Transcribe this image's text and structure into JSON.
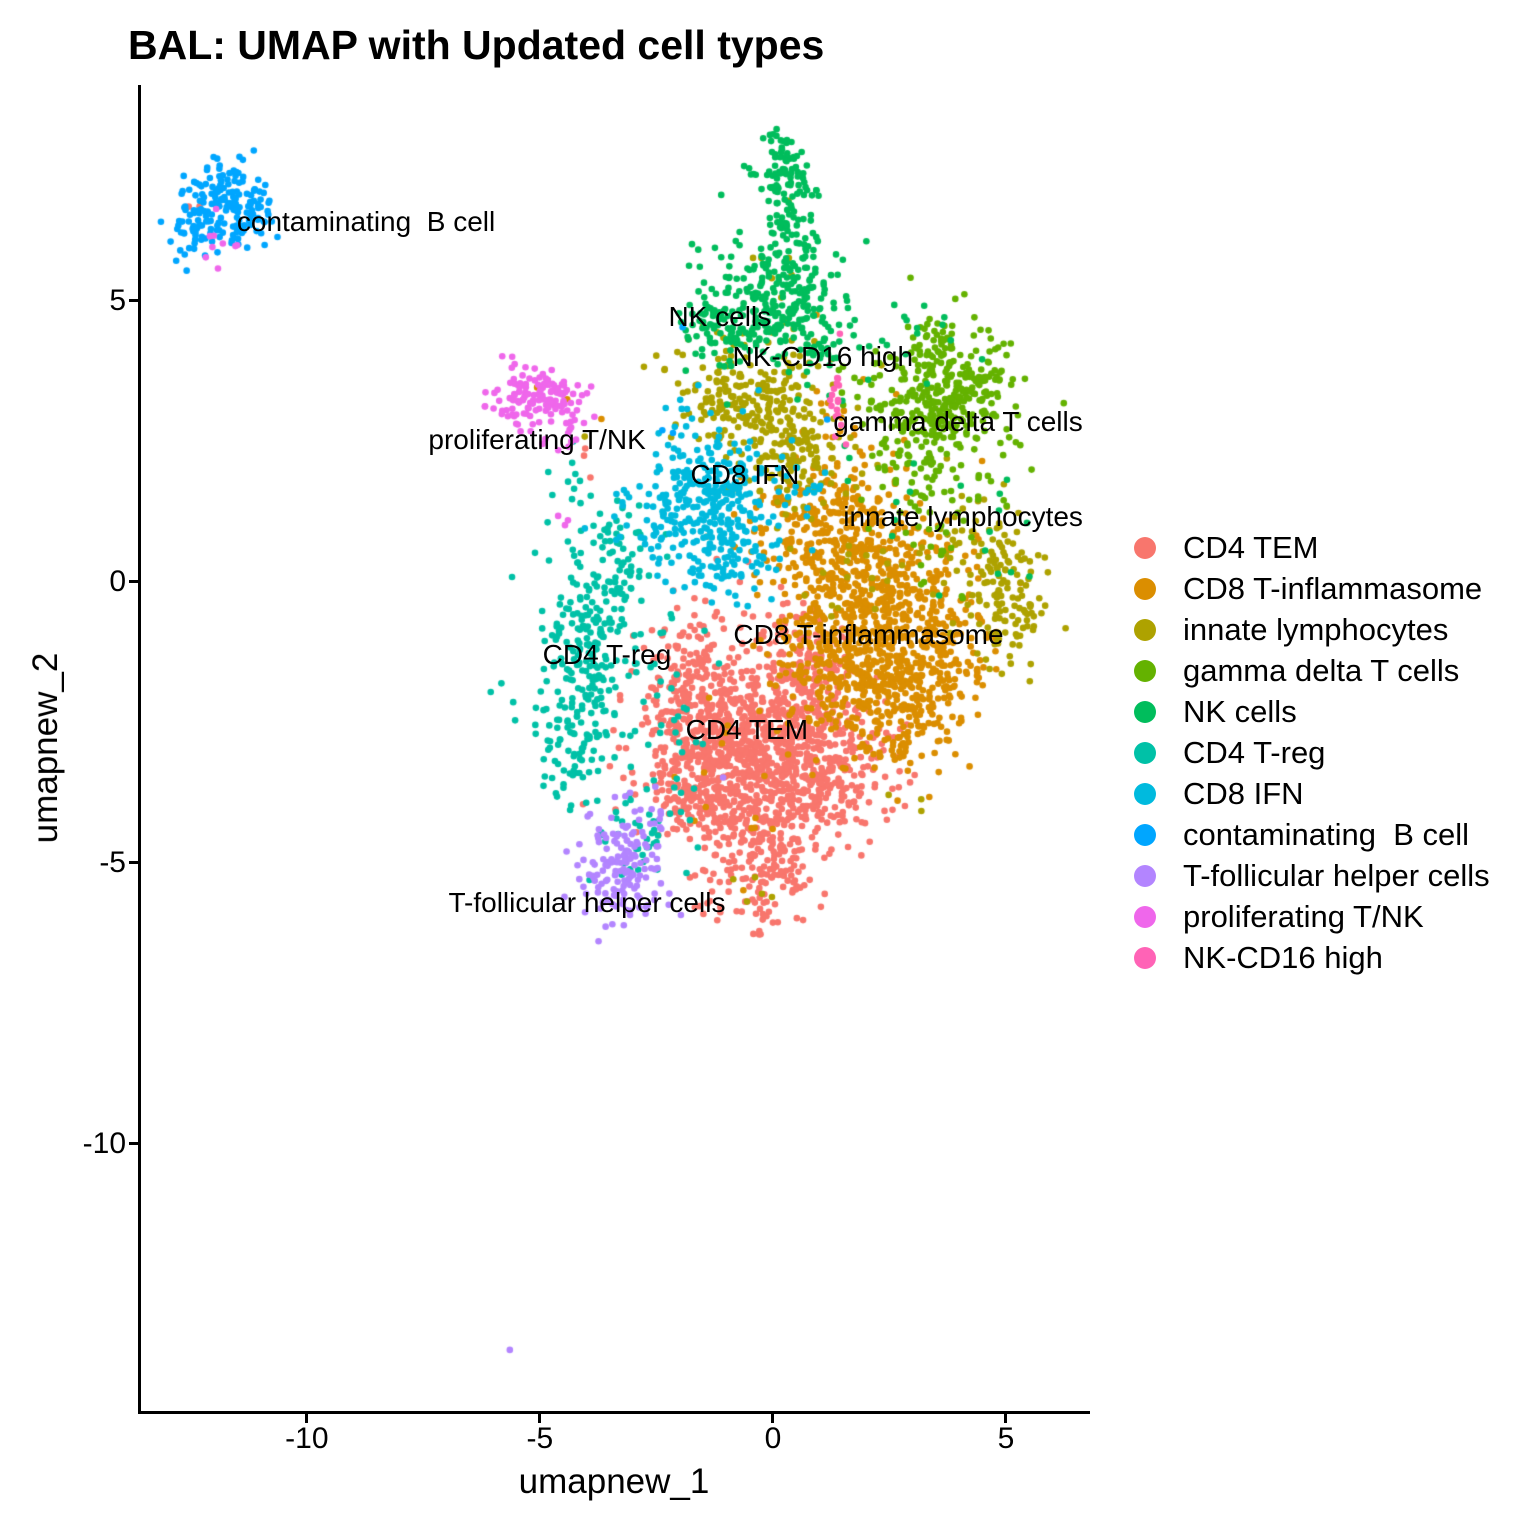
{
  "title": "BAL: UMAP with Updated cell types",
  "axes": {
    "x_label": "umapnew_1",
    "y_label": "umapnew_2",
    "x_ticks": [
      -10,
      -5,
      0,
      5
    ],
    "y_ticks": [
      5,
      0,
      -5,
      -10
    ]
  },
  "legend": {
    "items": [
      {
        "label": "CD4 TEM",
        "color": "#F8766D"
      },
      {
        "label": "CD8 T-inflammasome",
        "color": "#DB8E00"
      },
      {
        "label": "innate lymphocytes",
        "color": "#AEA200"
      },
      {
        "label": "gamma delta T cells",
        "color": "#64B200"
      },
      {
        "label": "NK cells",
        "color": "#00BD5C"
      },
      {
        "label": "CD4 T-reg",
        "color": "#00C1A7"
      },
      {
        "label": "CD8 IFN",
        "color": "#00BADE"
      },
      {
        "label": "contaminating  B cell",
        "color": "#00A6FF"
      },
      {
        "label": "T-follicular helper cells",
        "color": "#B385FF"
      },
      {
        "label": "proliferating T/NK",
        "color": "#EF67EB"
      },
      {
        "label": "NK-CD16 high",
        "color": "#FF63B6"
      }
    ]
  },
  "chart_data": {
    "type": "scatter",
    "title": "BAL: UMAP with Updated cell types",
    "xlabel": "umapnew_1",
    "ylabel": "umapnew_2",
    "xlim": [
      -13.58,
      6.76
    ],
    "ylim": [
      -14.77,
      8.84
    ],
    "grid": false,
    "legend_position": "right",
    "point_radius": 3.3,
    "seed": 7,
    "clusters": [
      {
        "name": "CD4 TEM",
        "color": "#F8766D",
        "label": {
          "text": "CD4 TEM",
          "x": -0.56,
          "y": -2.63
        },
        "blobs": [
          {
            "x": -0.3,
            "y": -2.7,
            "sx": 1.05,
            "sy": 0.95,
            "n": 650
          },
          {
            "x": -1.2,
            "y": -3.6,
            "sx": 0.7,
            "sy": 0.75,
            "n": 300
          },
          {
            "x": 0.9,
            "y": -3.2,
            "sx": 0.75,
            "sy": 0.8,
            "n": 300
          },
          {
            "x": -1.5,
            "y": -1.7,
            "sx": 0.6,
            "sy": 0.55,
            "n": 130
          },
          {
            "x": -0.1,
            "y": -5.0,
            "sx": 0.5,
            "sy": 0.55,
            "n": 120
          },
          {
            "x": 0.8,
            "y": -1.3,
            "sx": 0.5,
            "sy": 0.5,
            "n": 60
          },
          {
            "x": -2.2,
            "y": -2.8,
            "sx": 0.45,
            "sy": 0.9,
            "n": 40
          },
          {
            "x": -4.15,
            "y": 2.0,
            "sx": 0.15,
            "sy": 0.35,
            "n": 3
          },
          {
            "x": -12.0,
            "y": 6.5,
            "sx": 0.45,
            "sy": 0.25,
            "n": 2
          }
        ]
      },
      {
        "name": "CD8 T-inflammasome",
        "color": "#DB8E00",
        "label": {
          "text": "CD8 T-inflammasome",
          "x": 2.05,
          "y": -0.95
        },
        "blobs": [
          {
            "x": 2.3,
            "y": -0.4,
            "sx": 0.85,
            "sy": 0.95,
            "n": 450
          },
          {
            "x": 2.7,
            "y": -1.9,
            "sx": 0.75,
            "sy": 0.75,
            "n": 300
          },
          {
            "x": 1.4,
            "y": 0.8,
            "sx": 0.75,
            "sy": 0.7,
            "n": 220
          },
          {
            "x": 1.1,
            "y": -1.4,
            "sx": 0.6,
            "sy": 0.6,
            "n": 130
          },
          {
            "x": 3.9,
            "y": -0.9,
            "sx": 0.5,
            "sy": 0.6,
            "n": 80
          },
          {
            "x": 0.0,
            "y": 0.9,
            "sx": 0.7,
            "sy": 0.5,
            "n": 40
          },
          {
            "x": 1.3,
            "y": 2.4,
            "sx": 0.5,
            "sy": 0.7,
            "n": 30
          },
          {
            "x": -0.6,
            "y": -3.6,
            "sx": 0.8,
            "sy": 0.8,
            "n": 15
          },
          {
            "x": -5.0,
            "y": 3.3,
            "sx": 0.35,
            "sy": 0.2,
            "n": 2
          },
          {
            "x": -3.6,
            "y": 2.9,
            "sx": 0.05,
            "sy": 0.05,
            "n": 1
          }
        ]
      },
      {
        "name": "innate lymphocytes",
        "color": "#AEA200",
        "label": {
          "text": "innate lymphocytes",
          "x": 4.08,
          "y": 1.16
        },
        "blobs": [
          {
            "x": -0.35,
            "y": 3.1,
            "sx": 0.8,
            "sy": 0.6,
            "n": 200
          },
          {
            "x": 0.45,
            "y": 2.1,
            "sx": 0.6,
            "sy": 0.55,
            "n": 90
          },
          {
            "x": -1.3,
            "y": 3.7,
            "sx": 0.45,
            "sy": 0.4,
            "n": 30
          },
          {
            "x": 5.1,
            "y": -0.3,
            "sx": 0.45,
            "sy": 0.6,
            "n": 110
          },
          {
            "x": 4.4,
            "y": 0.5,
            "sx": 0.55,
            "sy": 0.55,
            "n": 50
          },
          {
            "x": 0.2,
            "y": 5.6,
            "sx": 0.3,
            "sy": 0.6,
            "n": 8
          },
          {
            "x": 1.8,
            "y": 0.5,
            "sx": 0.6,
            "sy": 0.8,
            "n": 20
          },
          {
            "x": -0.4,
            "y": -5.4,
            "sx": 0.5,
            "sy": 0.3,
            "n": 5
          },
          {
            "x": 2.8,
            "y": -3.6,
            "sx": 0.4,
            "sy": 0.4,
            "n": 3
          }
        ]
      },
      {
        "name": "gamma delta T cells",
        "color": "#64B200",
        "label": {
          "text": "gamma delta T cells",
          "x": 3.97,
          "y": 2.85
        },
        "blobs": [
          {
            "x": 3.75,
            "y": 3.5,
            "sx": 0.7,
            "sy": 0.55,
            "n": 300
          },
          {
            "x": 3.2,
            "y": 2.5,
            "sx": 0.5,
            "sy": 0.5,
            "n": 70
          },
          {
            "x": 3.6,
            "y": 1.3,
            "sx": 0.5,
            "sy": 0.8,
            "n": 45
          },
          {
            "x": 2.3,
            "y": 3.3,
            "sx": 0.5,
            "sy": 0.4,
            "n": 20
          },
          {
            "x": 4.8,
            "y": 2.2,
            "sx": 0.4,
            "sy": 0.5,
            "n": 15
          }
        ]
      },
      {
        "name": "NK cells",
        "color": "#00BD5C",
        "label": {
          "text": "NK cells",
          "x": -1.14,
          "y": 4.72
        },
        "blobs": [
          {
            "x": 0.28,
            "y": 7.3,
            "sx": 0.3,
            "sy": 0.35,
            "n": 90
          },
          {
            "x": 0.4,
            "y": 6.2,
            "sx": 0.25,
            "sy": 0.45,
            "n": 40
          },
          {
            "x": 0.1,
            "y": 5.0,
            "sx": 0.8,
            "sy": 0.55,
            "n": 270
          },
          {
            "x": -1.1,
            "y": 4.5,
            "sx": 0.5,
            "sy": 0.35,
            "n": 60
          },
          {
            "x": 1.0,
            "y": 4.0,
            "sx": 0.5,
            "sy": 0.4,
            "n": 30
          },
          {
            "x": 3.4,
            "y": 4.4,
            "sx": 0.7,
            "sy": 0.35,
            "n": 12
          },
          {
            "x": 4.7,
            "y": 0.8,
            "sx": 0.5,
            "sy": 0.7,
            "n": 10
          },
          {
            "x": 2.3,
            "y": 1.5,
            "sx": 0.7,
            "sy": 0.9,
            "n": 10
          }
        ]
      },
      {
        "name": "CD4 T-reg",
        "color": "#00C1A7",
        "label": {
          "text": "CD4 T-reg",
          "x": -3.56,
          "y": -1.3
        },
        "blobs": [
          {
            "x": -4.0,
            "y": -1.1,
            "sx": 0.5,
            "sy": 0.85,
            "n": 170
          },
          {
            "x": -4.35,
            "y": -2.7,
            "sx": 0.4,
            "sy": 0.75,
            "n": 90
          },
          {
            "x": -3.3,
            "y": 0.3,
            "sx": 0.55,
            "sy": 0.5,
            "n": 70
          },
          {
            "x": -2.7,
            "y": -4.4,
            "sx": 0.55,
            "sy": 0.65,
            "n": 45
          },
          {
            "x": -4.4,
            "y": 1.7,
            "sx": 0.3,
            "sy": 0.4,
            "n": 12
          },
          {
            "x": -2.3,
            "y": -2.4,
            "sx": 0.5,
            "sy": 0.8,
            "n": 25
          }
        ]
      },
      {
        "name": "CD8 IFN",
        "color": "#00BADE",
        "label": {
          "text": "CD8 IFN",
          "x": -0.6,
          "y": 1.9
        },
        "blobs": [
          {
            "x": -1.15,
            "y": 1.5,
            "sx": 0.7,
            "sy": 0.55,
            "n": 230
          },
          {
            "x": -2.2,
            "y": 0.9,
            "sx": 0.5,
            "sy": 0.45,
            "n": 55
          },
          {
            "x": -0.9,
            "y": 0.35,
            "sx": 0.55,
            "sy": 0.4,
            "n": 55
          },
          {
            "x": -1.6,
            "y": 2.6,
            "sx": 0.4,
            "sy": 0.45,
            "n": 20
          },
          {
            "x": -3.2,
            "y": 1.0,
            "sx": 0.3,
            "sy": 0.4,
            "n": 8
          },
          {
            "x": 0.4,
            "y": 1.6,
            "sx": 0.5,
            "sy": 0.5,
            "n": 15
          }
        ]
      },
      {
        "name": "contaminating  B cell",
        "color": "#00A6FF",
        "label": {
          "text": "contaminating  B cell",
          "x": -8.73,
          "y": 6.41
        },
        "blobs": [
          {
            "x": -11.7,
            "y": 6.75,
            "sx": 0.42,
            "sy": 0.4,
            "n": 150
          },
          {
            "x": -12.5,
            "y": 6.25,
            "sx": 0.3,
            "sy": 0.28,
            "n": 35
          },
          {
            "x": -11.3,
            "y": 6.2,
            "sx": 0.25,
            "sy": 0.2,
            "n": 20
          },
          {
            "x": -2.4,
            "y": 3.0,
            "sx": 0.3,
            "sy": 0.3,
            "n": 2
          },
          {
            "x": 1.3,
            "y": 3.0,
            "sx": 0.1,
            "sy": 0.1,
            "n": 1
          },
          {
            "x": -1.9,
            "y": 4.5,
            "sx": 0.05,
            "sy": 0.05,
            "n": 1
          }
        ]
      },
      {
        "name": "T-follicular helper cells",
        "color": "#B385FF",
        "label": {
          "text": "T-follicular helper cells",
          "x": -3.99,
          "y": -5.71
        },
        "blobs": [
          {
            "x": -3.3,
            "y": -5.05,
            "sx": 0.45,
            "sy": 0.5,
            "n": 150
          },
          {
            "x": -2.6,
            "y": -4.35,
            "sx": 0.3,
            "sy": 0.3,
            "n": 10
          },
          {
            "x": -1.0,
            "y": -3.5,
            "sx": 0.05,
            "sy": 0.05,
            "n": 1
          },
          {
            "x": -5.64,
            "y": -13.66,
            "sx": 0.01,
            "sy": 0.01,
            "n": 1
          }
        ]
      },
      {
        "name": "proliferating T/NK",
        "color": "#EF67EB",
        "label": {
          "text": "proliferating T/NK",
          "x": -5.06,
          "y": 2.53
        },
        "blobs": [
          {
            "x": -4.95,
            "y": 3.25,
            "sx": 0.55,
            "sy": 0.28,
            "n": 120
          },
          {
            "x": -5.45,
            "y": 3.55,
            "sx": 0.2,
            "sy": 0.25,
            "n": 15
          },
          {
            "x": -4.3,
            "y": 2.6,
            "sx": 0.25,
            "sy": 0.25,
            "n": 6
          },
          {
            "x": -11.95,
            "y": 6.05,
            "sx": 0.35,
            "sy": 0.2,
            "n": 9
          },
          {
            "x": -4.5,
            "y": 1.2,
            "sx": 0.15,
            "sy": 0.4,
            "n": 3
          }
        ]
      },
      {
        "name": "NK-CD16 high",
        "color": "#FF63B6",
        "label": {
          "text": "NK-CD16 high",
          "x": 1.07,
          "y": 4.0
        },
        "blobs": [
          {
            "x": 1.38,
            "y": 3.35,
            "sx": 0.09,
            "sy": 0.3,
            "n": 14
          },
          {
            "x": 1.5,
            "y": 2.85,
            "sx": 0.1,
            "sy": 0.15,
            "n": 3
          }
        ]
      }
    ]
  }
}
